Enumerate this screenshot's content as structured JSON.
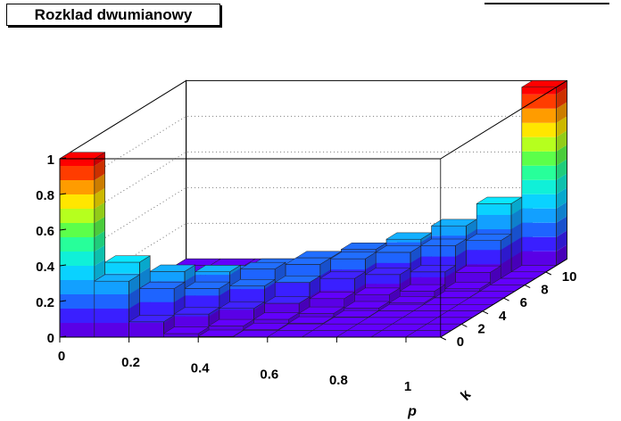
{
  "title": "Rozklad dwumianowy",
  "chart_data": {
    "type": "lego3d",
    "title": "Rozklad dwumianowy",
    "xlabel": "p",
    "ylabel": "k",
    "x": [
      0,
      0.1,
      0.2,
      0.3,
      0.4,
      0.5,
      0.6,
      0.7,
      0.8,
      0.9,
      1
    ],
    "k": [
      0,
      1,
      2,
      3,
      4,
      5,
      6,
      7,
      8,
      9,
      10,
      11
    ],
    "n": 11,
    "zlim": [
      0,
      1
    ],
    "ticks": {
      "p": [
        "0",
        "0.2",
        "0.4",
        "0.6",
        "0.8",
        "1"
      ],
      "k": [
        "0",
        "2",
        "4",
        "6",
        "8",
        "10"
      ],
      "z": [
        "0",
        "0.2",
        "0.4",
        "0.6",
        "0.8",
        "1"
      ]
    },
    "palette": [
      "#5a00e6",
      "#3a1fff",
      "#1e64ff",
      "#12a0ff",
      "#0ad2ff",
      "#10f0d8",
      "#27ff9a",
      "#5cff4a",
      "#b6ff1e",
      "#ffe600",
      "#ff9c00",
      "#ff3c00",
      "#ff0000"
    ],
    "colors": {
      "frame": "#000000",
      "grid": "#777777",
      "edges": "#202020"
    }
  }
}
